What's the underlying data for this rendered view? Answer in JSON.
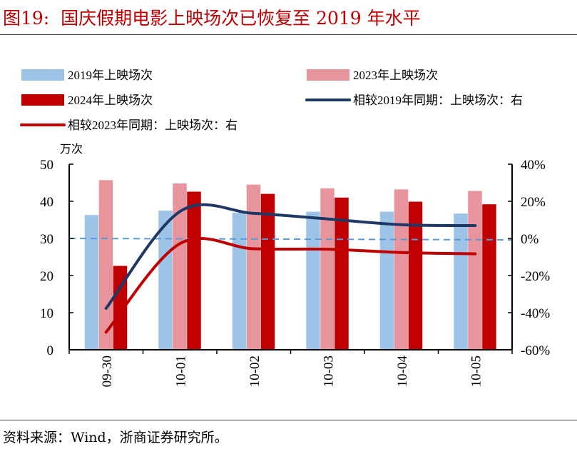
{
  "title": "图19:  国庆假期电影上映场次已恢复至 2019 年水平",
  "source": "资料来源：Wind，浙商证券研究所。",
  "chart_data": {
    "type": "bar+line",
    "title": "",
    "categories": [
      "09-30",
      "10-01",
      "10-02",
      "10-03",
      "10-04",
      "10-05"
    ],
    "left_axis": {
      "unit": "万次",
      "ylim": [
        0,
        50
      ],
      "ticks": [
        "0",
        "10",
        "20",
        "30",
        "40",
        "50"
      ]
    },
    "right_axis": {
      "ylim": [
        -60,
        40
      ],
      "ticks": [
        "-60%",
        "-40%",
        "-20%",
        "0%",
        "20%",
        "40%"
      ]
    },
    "bar_series": [
      {
        "name": "2019年上映场次",
        "color": "#9dc3e6",
        "values": [
          36.3,
          37.5,
          36.9,
          37.2,
          37.2,
          36.7
        ]
      },
      {
        "name": "2023年上映场次",
        "color": "#e8949c",
        "values": [
          45.7,
          44.8,
          44.5,
          43.5,
          43.2,
          42.8
        ]
      },
      {
        "name": "2024年上映场次",
        "color": "#c00000",
        "values": [
          22.6,
          42.6,
          42.0,
          41.0,
          39.9,
          39.2
        ]
      }
    ],
    "line_series": [
      {
        "name": "相较2019年同期：上映场次：右",
        "color": "#1f3864",
        "values": [
          -37.7,
          14.5,
          13.5,
          10.5,
          7.4,
          6.9
        ]
      },
      {
        "name": "相较2023年同期：上映场次：右",
        "color": "#c00000",
        "values": [
          -50.5,
          -2.8,
          -5.6,
          -5.8,
          -7.6,
          -8.3
        ]
      }
    ],
    "reference_line": {
      "value": 0,
      "axis": "right",
      "style": "dashed",
      "color": "#5b9bd5"
    },
    "grid": false,
    "legend": "top"
  }
}
